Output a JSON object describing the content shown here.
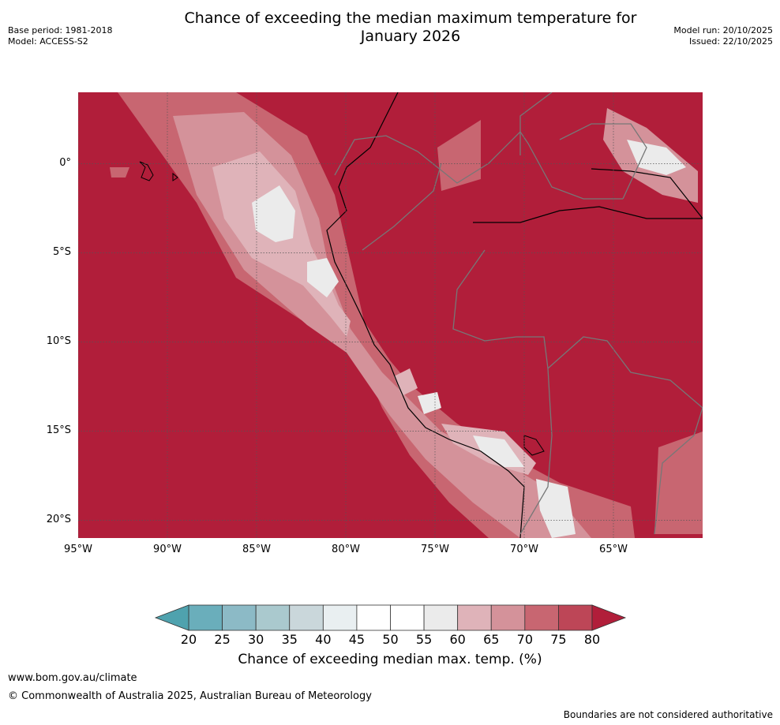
{
  "title_line1": "Chance of exceeding the median maximum temperature for",
  "title_line2": "January 2026",
  "meta_left": [
    "Base period: 1981-2018",
    "Model: ACCESS-S2"
  ],
  "meta_right": [
    "Model run: 20/10/2025",
    "Issued: 22/10/2025"
  ],
  "map": {
    "lat_ticks": [
      {
        "value": 0,
        "label": "0°"
      },
      {
        "value": -5,
        "label": "5°S"
      },
      {
        "value": -10,
        "label": "10°S"
      },
      {
        "value": -15,
        "label": "15°S"
      },
      {
        "value": -20,
        "label": "20°S"
      }
    ],
    "lon_ticks": [
      {
        "value": -95,
        "label": "95°W"
      },
      {
        "value": -90,
        "label": "90°W"
      },
      {
        "value": -85,
        "label": "85°W"
      },
      {
        "value": -80,
        "label": "80°W"
      },
      {
        "value": -75,
        "label": "75°W"
      },
      {
        "value": -70,
        "label": "70°W"
      },
      {
        "value": -65,
        "label": "65°W"
      }
    ],
    "lon_range": [
      -95,
      -60
    ],
    "lat_range": [
      -21,
      4
    ],
    "background_value": 80
  },
  "colorbar": {
    "ticks": [
      "20",
      "25",
      "30",
      "35",
      "40",
      "45",
      "50",
      "55",
      "60",
      "65",
      "70",
      "75",
      "80"
    ],
    "colors": [
      "#6aaebb",
      "#8cbac6",
      "#aac9ce",
      "#cad7db",
      "#e9eff1",
      "#ffffff",
      "#ffffff",
      "#ebebeb",
      "#dfb3b9",
      "#d4929a",
      "#c86671",
      "#bd4657",
      "#b11f3a"
    ],
    "under_color": "#4fa2ae",
    "over_color": "#b11e3a",
    "label": "Chance of exceeding median max. temp. (%)"
  },
  "footer": {
    "url": "www.bom.gov.au/climate",
    "copyright": "© Commonwealth of Australia 2025, Australian Bureau of Meteorology",
    "note": "Boundaries are not considered authoritative"
  }
}
